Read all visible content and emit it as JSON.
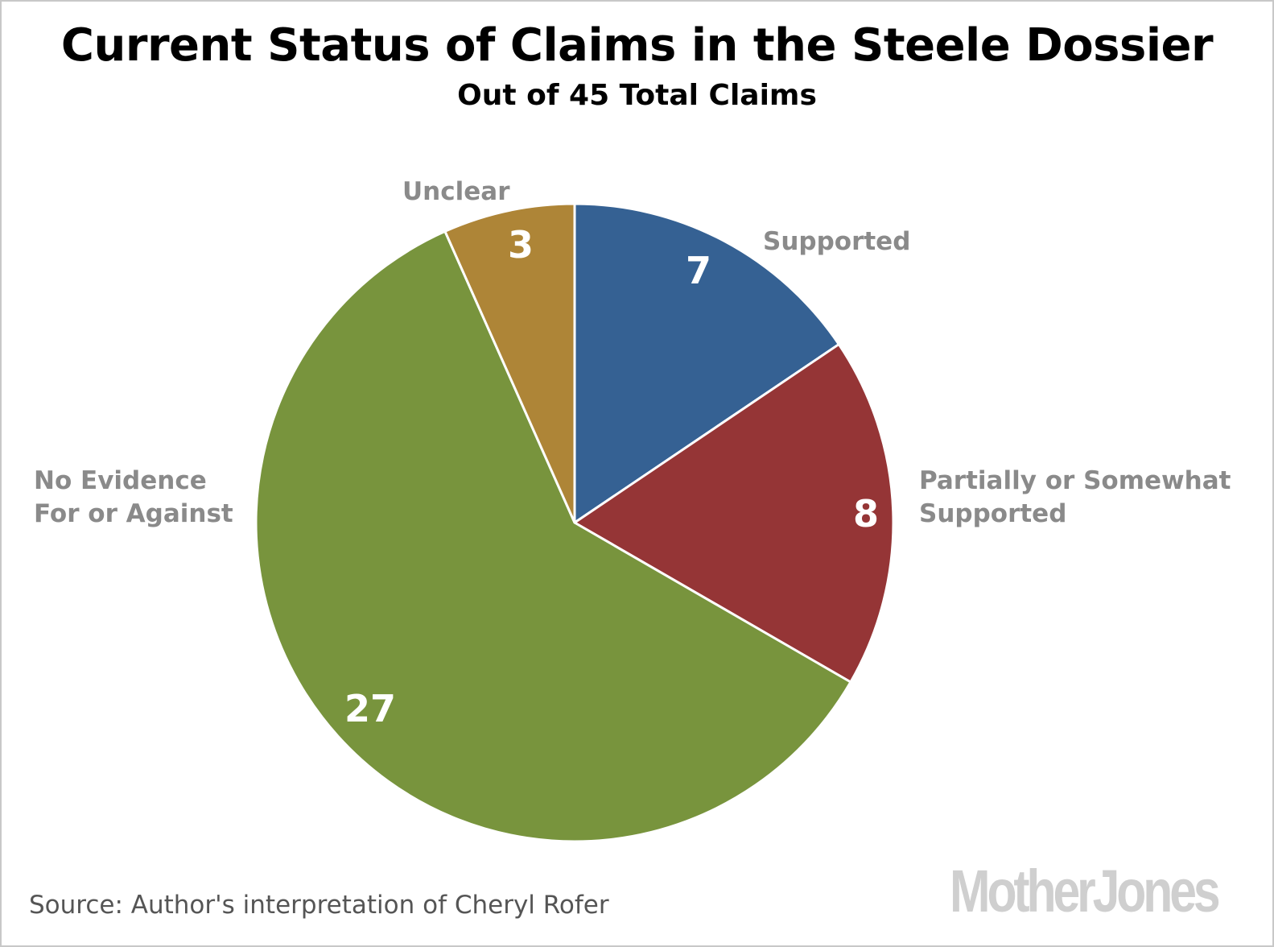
{
  "title": "Current Status of Claims in the Steele Dossier",
  "subtitle": "Out of 45 Total Claims",
  "source": "Source: Author's interpretation of Cheryl Rofer",
  "logo_text": "MotherJones",
  "chart_data": {
    "type": "pie",
    "total": 45,
    "start": "12 o'clock, clockwise",
    "slices": [
      {
        "label": "Supported",
        "value": 7,
        "color": "#356193"
      },
      {
        "label": "Partially or Somewhat Supported",
        "value": 8,
        "color": "#953536"
      },
      {
        "label": "No Evidence For or Against",
        "value": 27,
        "color": "#78943d"
      },
      {
        "label": "Unclear",
        "value": 3,
        "color": "#ae8537"
      }
    ],
    "label_color": "#8a8a8a",
    "value_color": "#ffffff",
    "slice_border_color": "#ffffff"
  }
}
